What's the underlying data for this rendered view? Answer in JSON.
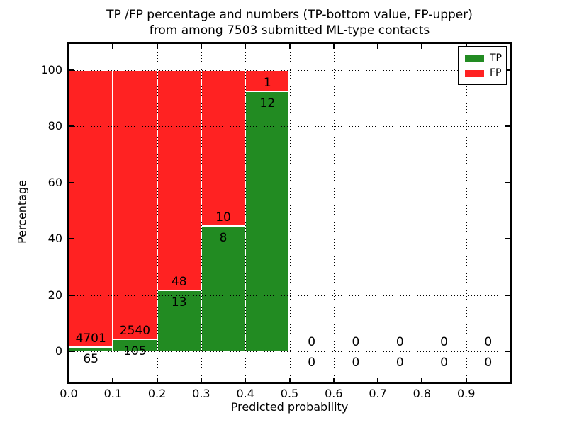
{
  "figure": {
    "title_line1": "TP /FP percentage and numbers (TP-bottom value, FP-upper)",
    "title_line2": "from among 7503 submitted ML-type contacts"
  },
  "chart_data": {
    "type": "bar",
    "stacked": true,
    "title": "TP /FP percentage and numbers (TP-bottom value, FP-upper) from among 7503 submitted ML-type contacts",
    "xlabel": "Predicted probability",
    "ylabel": "Percentage",
    "x_tick_labels": [
      "0.0",
      "0.1",
      "0.2",
      "0.3",
      "0.4",
      "0.5",
      "0.6",
      "0.7",
      "0.8",
      "0.9"
    ],
    "y_tick_values": [
      0,
      20,
      40,
      60,
      80,
      100
    ],
    "xlim": [
      0.0,
      1.0
    ],
    "ylim": [
      -11,
      110
    ],
    "grid": "dotted",
    "bar_edge_color": "#ffffff",
    "legend": {
      "position": "upper right",
      "entries": [
        {
          "label": "TP",
          "color": "#228b22"
        },
        {
          "label": "FP",
          "color": "#ff2222"
        }
      ]
    },
    "series": [
      {
        "name": "TP",
        "color": "#228b22",
        "counts": [
          65,
          105,
          13,
          8,
          12,
          0,
          0,
          0,
          0,
          0
        ]
      },
      {
        "name": "FP",
        "color": "#ff2222",
        "counts": [
          4701,
          2540,
          48,
          10,
          1,
          0,
          0,
          0,
          0,
          0
        ]
      }
    ],
    "bins": [
      {
        "range": [
          0.0,
          0.1
        ],
        "tp": 65,
        "fp": 4701,
        "tp_pct": 1.36,
        "fp_pct": 98.64
      },
      {
        "range": [
          0.1,
          0.2
        ],
        "tp": 105,
        "fp": 2540,
        "tp_pct": 3.97,
        "fp_pct": 96.03
      },
      {
        "range": [
          0.2,
          0.3
        ],
        "tp": 13,
        "fp": 48,
        "tp_pct": 21.31,
        "fp_pct": 78.69
      },
      {
        "range": [
          0.3,
          0.4
        ],
        "tp": 8,
        "fp": 10,
        "tp_pct": 44.44,
        "fp_pct": 55.56
      },
      {
        "range": [
          0.4,
          0.5
        ],
        "tp": 12,
        "fp": 1,
        "tp_pct": 92.31,
        "fp_pct": 7.69
      },
      {
        "range": [
          0.5,
          0.6
        ],
        "tp": 0,
        "fp": 0,
        "tp_pct": 0,
        "fp_pct": 0
      },
      {
        "range": [
          0.6,
          0.7
        ],
        "tp": 0,
        "fp": 0,
        "tp_pct": 0,
        "fp_pct": 0
      },
      {
        "range": [
          0.7,
          0.8
        ],
        "tp": 0,
        "fp": 0,
        "tp_pct": 0,
        "fp_pct": 0
      },
      {
        "range": [
          0.8,
          0.9
        ],
        "tp": 0,
        "fp": 0,
        "tp_pct": 0,
        "fp_pct": 0
      },
      {
        "range": [
          0.9,
          1.0
        ],
        "tp": 0,
        "fp": 0,
        "tp_pct": 0,
        "fp_pct": 0
      }
    ]
  }
}
